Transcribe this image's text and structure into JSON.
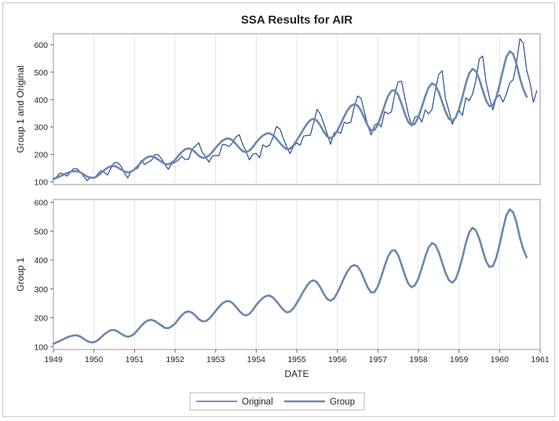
{
  "chart_data": {
    "type": "line",
    "title": "SSA Results for AIR",
    "xlabel": "DATE",
    "x_ticks": [
      "1949",
      "1950",
      "1951",
      "1952",
      "1953",
      "1954",
      "1955",
      "1956",
      "1957",
      "1958",
      "1959",
      "1960",
      "1961"
    ],
    "xlim": [
      "1949-01",
      "1961-01"
    ],
    "start": "1949-01",
    "frequency": "monthly",
    "panels": [
      {
        "ylabel": "Group 1 and Original",
        "ylim": [
          90,
          640
        ],
        "y_ticks": [
          100,
          200,
          300,
          400,
          500,
          600
        ],
        "series": [
          "Original",
          "Group"
        ]
      },
      {
        "ylabel": "Group 1",
        "ylim": [
          90,
          610
        ],
        "y_ticks": [
          100,
          200,
          300,
          400,
          500,
          600
        ],
        "series": [
          "Group"
        ]
      }
    ],
    "series": [
      {
        "name": "Original",
        "color": "#2a4a94",
        "values": [
          112,
          118,
          132,
          129,
          121,
          135,
          148,
          148,
          136,
          119,
          104,
          118,
          115,
          126,
          141,
          135,
          125,
          149,
          170,
          170,
          158,
          133,
          114,
          140,
          145,
          150,
          178,
          163,
          172,
          178,
          199,
          199,
          184,
          162,
          146,
          166,
          171,
          180,
          193,
          181,
          183,
          218,
          230,
          242,
          209,
          191,
          172,
          194,
          196,
          196,
          236,
          235,
          229,
          243,
          264,
          272,
          237,
          211,
          180,
          201,
          204,
          188,
          235,
          227,
          234,
          264,
          302,
          293,
          259,
          229,
          203,
          229,
          242,
          233,
          267,
          269,
          270,
          315,
          364,
          347,
          312,
          274,
          237,
          278,
          284,
          277,
          317,
          313,
          318,
          374,
          413,
          405,
          355,
          306,
          271,
          306,
          315,
          301,
          356,
          348,
          355,
          422,
          465,
          467,
          404,
          347,
          305,
          336,
          340,
          318,
          362,
          348,
          363,
          435,
          491,
          505,
          404,
          359,
          310,
          337,
          360,
          342,
          406,
          396,
          420,
          472,
          548,
          559,
          463,
          407,
          362,
          405,
          417,
          391,
          419,
          461,
          472,
          535,
          622,
          606,
          508,
          461,
          390,
          432
        ]
      },
      {
        "name": "Group",
        "color": "#6b86b0",
        "values": [
          110,
          115,
          120,
          126,
          132,
          136,
          139,
          139,
          135,
          127,
          119,
          115,
          115,
          121,
          131,
          142,
          151,
          157,
          158,
          153,
          145,
          138,
          134,
          137,
          145,
          158,
          172,
          184,
          191,
          193,
          189,
          181,
          173,
          165,
          164,
          170,
          180,
          195,
          209,
          219,
          222,
          218,
          208,
          195,
          188,
          188,
          196,
          209,
          224,
          238,
          250,
          257,
          258,
          251,
          238,
          224,
          212,
          208,
          214,
          227,
          244,
          258,
          269,
          276,
          277,
          270,
          257,
          242,
          228,
          219,
          221,
          233,
          251,
          271,
          292,
          311,
          325,
          330,
          323,
          305,
          283,
          265,
          259,
          267,
          287,
          312,
          338,
          361,
          377,
          383,
          378,
          360,
          332,
          305,
          288,
          289,
          309,
          342,
          379,
          413,
          432,
          434,
          417,
          384,
          347,
          318,
          306,
          313,
          337,
          373,
          412,
          444,
          459,
          453,
          428,
          392,
          356,
          330,
          322,
          334,
          366,
          410,
          458,
          496,
          512,
          503,
          474,
          434,
          396,
          376,
          379,
          407,
          453,
          507,
          555,
          576,
          566,
          530,
          478,
          438,
          410
        ]
      }
    ],
    "legend": {
      "position": "bottom",
      "items": [
        {
          "label": "Original",
          "style": "thin",
          "color": "#2a4a94"
        },
        {
          "label": "Group",
          "style": "thick",
          "color": "#6b86b0"
        }
      ]
    },
    "grid": "vertical"
  }
}
